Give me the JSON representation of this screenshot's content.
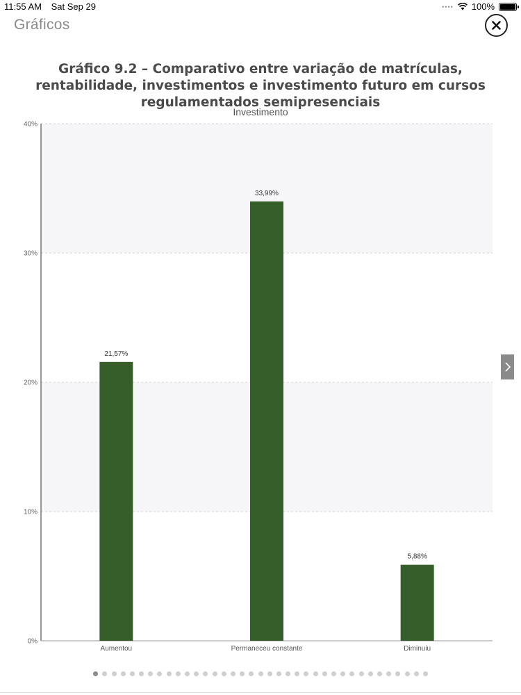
{
  "status_bar": {
    "time": "11:55 AM",
    "date": "Sat Sep 29",
    "battery": "100%"
  },
  "app": {
    "title": "Gráficos"
  },
  "chart_data": {
    "type": "bar",
    "title_lines": [
      "Gráfico 9.2 – Comparativo entre variação de matrículas,",
      "rentabilidade, investimentos e investimento futuro em cursos",
      "regulamentados semipresenciais"
    ],
    "subtitle": "Investimento",
    "categories": [
      "Aumentou",
      "Permaneceu constante",
      "Diminuiu"
    ],
    "values": [
      21.57,
      33.99,
      5.88
    ],
    "data_labels": [
      "21,57%",
      "33,99%",
      "5,88%"
    ],
    "y_ticks": [
      0,
      10,
      20,
      30,
      40
    ],
    "y_tick_labels": [
      "0%",
      "10%",
      "20%",
      "30%",
      "40%"
    ],
    "ylim": [
      0,
      40
    ],
    "bar_color": "#365e2b",
    "grid": true,
    "legend": "none"
  },
  "pager": {
    "count": 37,
    "active": 0
  }
}
